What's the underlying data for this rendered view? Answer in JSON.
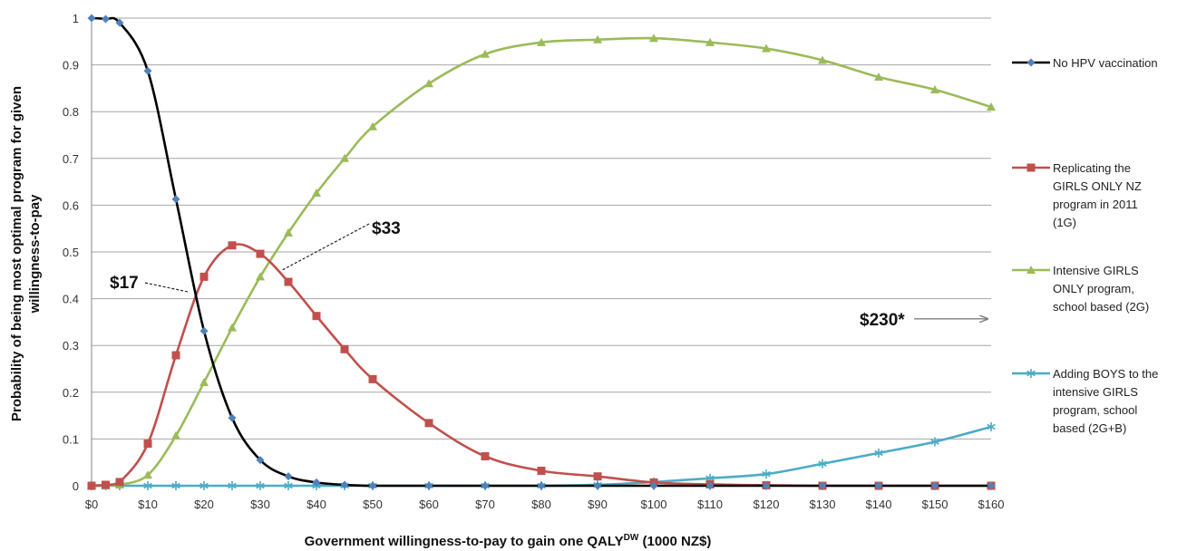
{
  "chart_data": {
    "type": "line",
    "xlabel": "Government willingness-to-pay to gain one QALY",
    "xlabel_superscript": "DW",
    "xlabel_suffix": " (1000 NZ$)",
    "ylabel_lines": [
      "Probability of being most optimal program for given",
      "willingness-to-pay"
    ],
    "xlim": [
      0,
      160
    ],
    "ylim": [
      0,
      1
    ],
    "grid": "horizontal",
    "legend_position": "right",
    "x_ticks": [
      0,
      10,
      20,
      30,
      40,
      50,
      60,
      70,
      80,
      90,
      100,
      110,
      120,
      130,
      140,
      150,
      160
    ],
    "x_tick_labels": [
      "$0",
      "$10",
      "$20",
      "$30",
      "$40",
      "$50",
      "$60",
      "$70",
      "$80",
      "$90",
      "$100",
      "$110",
      "$120",
      "$130",
      "$140",
      "$150",
      "$160"
    ],
    "y_ticks": [
      0,
      0.1,
      0.2,
      0.3,
      0.4,
      0.5,
      0.6,
      0.7,
      0.8,
      0.9,
      1
    ],
    "y_tick_labels": [
      "0",
      "0.1",
      "0.2",
      "0.3",
      "0.4",
      "0.5",
      "0.6",
      "0.7",
      "0.8",
      "0.9",
      "1"
    ],
    "x": [
      0,
      2.5,
      5,
      10,
      15,
      20,
      25,
      30,
      35,
      40,
      45,
      50,
      60,
      70,
      80,
      90,
      100,
      110,
      120,
      130,
      140,
      150,
      160
    ],
    "series": [
      {
        "name": "No HPV vaccination",
        "legend_lines": [
          "No HPV vaccination"
        ],
        "line_color": "#000000",
        "marker_color": "#4f81bd",
        "marker": "diamond",
        "values": [
          1.0,
          0.998,
          0.99,
          0.887,
          0.613,
          0.331,
          0.145,
          0.055,
          0.02,
          0.007,
          0.002,
          0.0,
          0.0,
          0.0,
          0.0,
          0.0,
          0.0,
          0.0,
          0.0,
          0.0,
          0.0,
          0.0,
          0.0
        ]
      },
      {
        "name": "Replicating the GIRLS ONLY NZ program in 2011 (1G)",
        "legend_lines": [
          "Replicating the",
          "GIRLS ONLY NZ",
          "program in 2011",
          "(1G)"
        ],
        "line_color": "#c0504d",
        "marker_color": "#c0504d",
        "marker": "square",
        "values": [
          0.0,
          0.002,
          0.008,
          0.09,
          0.279,
          0.447,
          0.514,
          0.496,
          0.436,
          0.363,
          0.292,
          0.228,
          0.134,
          0.063,
          0.032,
          0.02,
          0.007,
          0.003,
          0.001,
          0.0,
          0.0,
          0.0,
          0.0
        ]
      },
      {
        "name": "Intensive GIRLS ONLY program, school based (2G)",
        "legend_lines": [
          "Intensive GIRLS",
          "ONLY program,",
          "school based (2G)"
        ],
        "line_color": "#9bbb59",
        "marker_color": "#9bbb59",
        "marker": "triangle",
        "values": [
          0.0,
          0.0,
          0.002,
          0.023,
          0.107,
          0.221,
          0.338,
          0.447,
          0.541,
          0.626,
          0.7,
          0.768,
          0.86,
          0.923,
          0.948,
          0.954,
          0.957,
          0.948,
          0.935,
          0.91,
          0.874,
          0.847,
          0.81
        ]
      },
      {
        "name": "Adding BOYS to the intensive GIRLS program, school based (2G+B)",
        "legend_lines": [
          "Adding BOYS to the",
          "intensive GIRLS",
          "program, school",
          "based (2G+B)"
        ],
        "line_color": "#4bacc6",
        "marker_color": "#4bacc6",
        "marker": "star",
        "values": [
          0.0,
          0.0,
          0.0,
          0.0,
          0.0,
          0.0,
          0.0,
          0.0,
          0.0,
          0.0,
          0.0,
          0.0,
          0.0,
          0.0,
          0.0,
          0.002,
          0.008,
          0.016,
          0.025,
          0.047,
          0.07,
          0.094,
          0.126
        ]
      }
    ],
    "annotations": [
      {
        "text": "$17",
        "kind": "dashed-pointer",
        "target_x": 17,
        "target_y": 0.42
      },
      {
        "text": "$33",
        "kind": "dashed-pointer",
        "target_x": 33,
        "target_y": 0.48
      },
      {
        "text": "$230*",
        "kind": "arrow-right",
        "target_x": 160,
        "target_y": 0.355
      }
    ]
  }
}
